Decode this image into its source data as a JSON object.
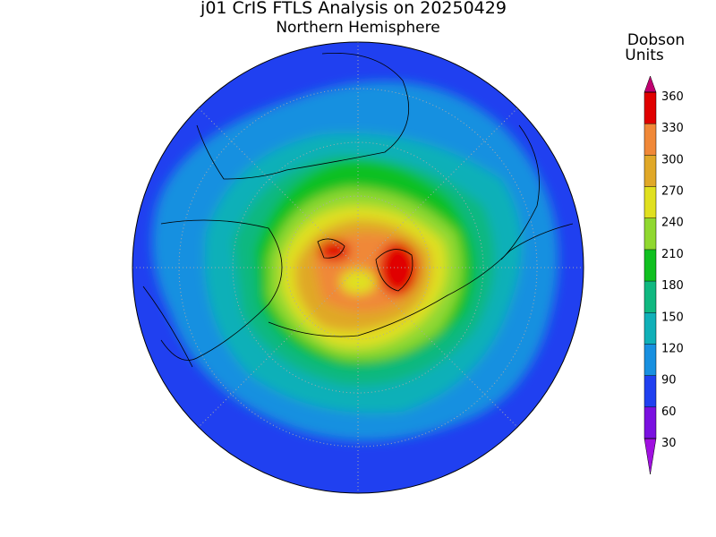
{
  "title": "j01 CrIS FTLS Analysis on 20250429",
  "subtitle": "Northern Hemisphere",
  "colorbar": {
    "label": [
      "Dobson",
      "Units"
    ],
    "lim": [
      30,
      360
    ],
    "ticks": [
      30,
      60,
      90,
      120,
      150,
      180,
      210,
      240,
      270,
      300,
      330,
      360
    ],
    "colors": [
      "#7a10e0",
      "#2040f0",
      "#1890e0",
      "#10b0b8",
      "#10b880",
      "#10c020",
      "#90d830",
      "#e0e020",
      "#e0a828",
      "#f08838",
      "#e00000"
    ],
    "under_color": "#a010e0",
    "over_color": "#c00070"
  }
}
